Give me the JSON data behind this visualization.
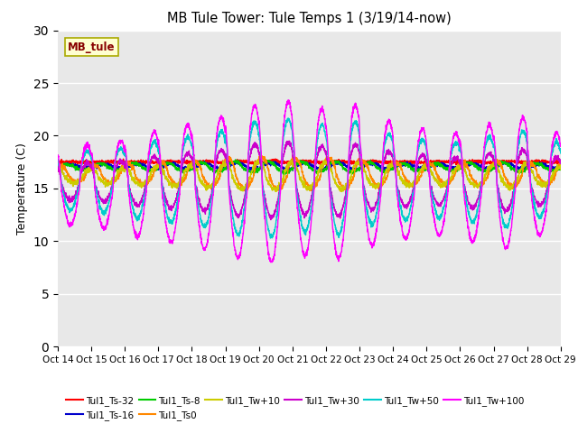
{
  "title": "MB Tule Tower: Tule Temps 1 (3/19/14-now)",
  "ylabel": "Temperature (C)",
  "xlim_days": [
    14,
    29
  ],
  "ylim": [
    0,
    30
  ],
  "yticks": [
    0,
    5,
    10,
    15,
    20,
    25,
    30
  ],
  "bg_color": "#e8e8e8",
  "legend_label": "MB_tule",
  "series": [
    {
      "name": "Tul1_Ts-32",
      "color": "#ff0000",
      "lw": 1.0,
      "base": 17.5,
      "amp": 0.05,
      "phase": 0.0
    },
    {
      "name": "Tul1_Ts-16",
      "color": "#0000cc",
      "lw": 1.0,
      "base": 17.1,
      "amp": 0.3,
      "phase": 0.0
    },
    {
      "name": "Tul1_Ts-8",
      "color": "#00cc00",
      "lw": 1.0,
      "base": 17.0,
      "amp": 0.5,
      "phase": 0.1
    },
    {
      "name": "Tul1_Ts0",
      "color": "#ff8800",
      "lw": 1.0,
      "base": 16.3,
      "amp": 1.5,
      "phase": 0.3
    },
    {
      "name": "Tul1_Tw+10",
      "color": "#cccc00",
      "lw": 1.0,
      "base": 16.1,
      "amp": 1.3,
      "phase": 0.4
    },
    {
      "name": "Tul1_Tw+30",
      "color": "#cc00cc",
      "lw": 1.0,
      "base": 15.5,
      "amp": 3.5,
      "phase": 0.5
    },
    {
      "name": "Tul1_Tw+50",
      "color": "#00cccc",
      "lw": 1.0,
      "base": 15.5,
      "amp": 5.5,
      "phase": 0.5
    },
    {
      "name": "Tul1_Tw+100",
      "color": "#ff00ff",
      "lw": 1.0,
      "base": 15.0,
      "amp": 7.5,
      "phase": 0.5
    }
  ],
  "xtick_labels": [
    "Oct 14",
    "Oct 15",
    "Oct 16",
    "Oct 17",
    "Oct 18",
    "Oct 19",
    "Oct 20",
    "Oct 21",
    "Oct 22",
    "Oct 23",
    "Oct 24",
    "Oct 25",
    "Oct 26",
    "Oct 27",
    "Oct 28",
    "Oct 29"
  ],
  "xtick_positions": [
    14,
    15,
    16,
    17,
    18,
    19,
    20,
    21,
    22,
    23,
    24,
    25,
    26,
    27,
    28,
    29
  ],
  "spike_heights": [
    0.55,
    0.6,
    0.72,
    0.8,
    0.9,
    1.05,
    1.1,
    1.0,
    1.05,
    0.85,
    0.75,
    0.7,
    0.8,
    0.9,
    0.7
  ],
  "n_points": 3000
}
